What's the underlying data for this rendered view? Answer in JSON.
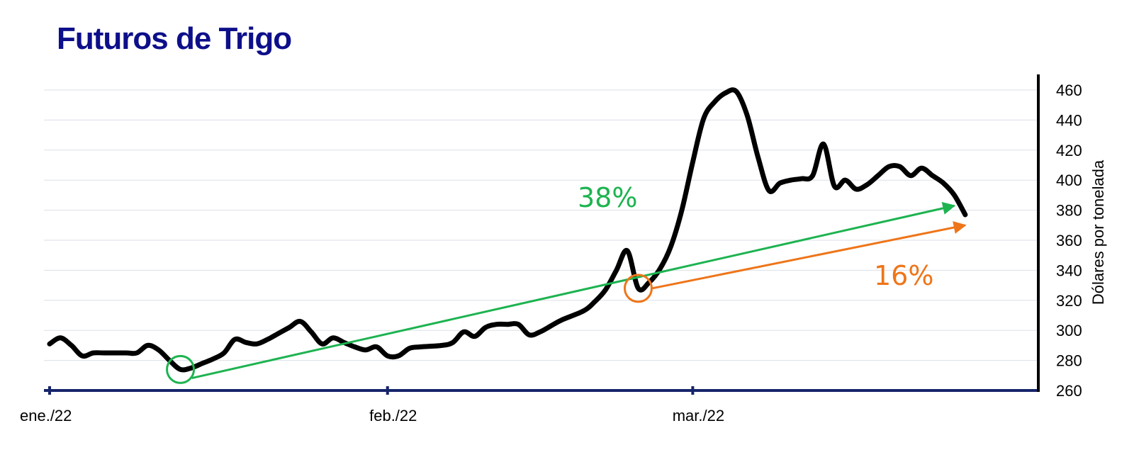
{
  "chart_data": {
    "type": "line",
    "title": "Futuros de  Trigo",
    "ylabel": "Dólares por tonelada",
    "ylim": [
      260,
      460
    ],
    "y_ticks": [
      260,
      280,
      300,
      320,
      340,
      360,
      380,
      400,
      420,
      440,
      460
    ],
    "y_axis_position": "right",
    "x_range": [
      "2022-01-03",
      "2022-03-31"
    ],
    "x_ticks": [
      {
        "date": "2022-01-03",
        "label": "ene./22"
      },
      {
        "date": "2022-02-03",
        "label": "feb./22"
      },
      {
        "date": "2022-03-03",
        "label": "mar./22"
      }
    ],
    "grid": "horizontal",
    "series": [
      {
        "color": "#000000",
        "points": [
          [
            "2022-01-03",
            291
          ],
          [
            "2022-01-04",
            295
          ],
          [
            "2022-01-05",
            290
          ],
          [
            "2022-01-06",
            283
          ],
          [
            "2022-01-07",
            285
          ],
          [
            "2022-01-08",
            285
          ],
          [
            "2022-01-10",
            285
          ],
          [
            "2022-01-11",
            285
          ],
          [
            "2022-01-12",
            290
          ],
          [
            "2022-01-13",
            287
          ],
          [
            "2022-01-14",
            280
          ],
          [
            "2022-01-15",
            274
          ],
          [
            "2022-01-16",
            275
          ],
          [
            "2022-01-17",
            278
          ],
          [
            "2022-01-18",
            281
          ],
          [
            "2022-01-19",
            285
          ],
          [
            "2022-01-20",
            294
          ],
          [
            "2022-01-21",
            292
          ],
          [
            "2022-01-22",
            291
          ],
          [
            "2022-01-23",
            294
          ],
          [
            "2022-01-24",
            298
          ],
          [
            "2022-01-25",
            302
          ],
          [
            "2022-01-26",
            306
          ],
          [
            "2022-01-27",
            299
          ],
          [
            "2022-01-28",
            291
          ],
          [
            "2022-01-29",
            295
          ],
          [
            "2022-01-30",
            292
          ],
          [
            "2022-01-31",
            289
          ],
          [
            "2022-02-01",
            287
          ],
          [
            "2022-02-02",
            289
          ],
          [
            "2022-02-03",
            283
          ],
          [
            "2022-02-04",
            283
          ],
          [
            "2022-02-05",
            288
          ],
          [
            "2022-02-06",
            289
          ],
          [
            "2022-02-08",
            290
          ],
          [
            "2022-02-09",
            292
          ],
          [
            "2022-02-10",
            299
          ],
          [
            "2022-02-11",
            296
          ],
          [
            "2022-02-12",
            302
          ],
          [
            "2022-02-13",
            304
          ],
          [
            "2022-02-14",
            304
          ],
          [
            "2022-02-15",
            304
          ],
          [
            "2022-02-16",
            297
          ],
          [
            "2022-02-17",
            299
          ],
          [
            "2022-02-18",
            303
          ],
          [
            "2022-02-19",
            307
          ],
          [
            "2022-02-21",
            313
          ],
          [
            "2022-02-22",
            319
          ],
          [
            "2022-02-23",
            327
          ],
          [
            "2022-02-24",
            340
          ],
          [
            "2022-02-25",
            353
          ],
          [
            "2022-02-26",
            328
          ],
          [
            "2022-02-27",
            332
          ],
          [
            "2022-02-28",
            341
          ],
          [
            "2022-03-01",
            356
          ],
          [
            "2022-03-02",
            380
          ],
          [
            "2022-03-03",
            412
          ],
          [
            "2022-03-04",
            441
          ],
          [
            "2022-03-05",
            452
          ],
          [
            "2022-03-06",
            458
          ],
          [
            "2022-03-07",
            459
          ],
          [
            "2022-03-08",
            443
          ],
          [
            "2022-03-09",
            415
          ],
          [
            "2022-03-10",
            393
          ],
          [
            "2022-03-11",
            398
          ],
          [
            "2022-03-12",
            400
          ],
          [
            "2022-03-13",
            401
          ],
          [
            "2022-03-14",
            403
          ],
          [
            "2022-03-15",
            424
          ],
          [
            "2022-03-16",
            396
          ],
          [
            "2022-03-17",
            400
          ],
          [
            "2022-03-18",
            394
          ],
          [
            "2022-03-19",
            397
          ],
          [
            "2022-03-20",
            403
          ],
          [
            "2022-03-21",
            409
          ],
          [
            "2022-03-22",
            409
          ],
          [
            "2022-03-23",
            403
          ],
          [
            "2022-03-24",
            408
          ],
          [
            "2022-03-25",
            403
          ],
          [
            "2022-03-26",
            398
          ],
          [
            "2022-03-27",
            390
          ],
          [
            "2022-03-28",
            377
          ]
        ]
      }
    ],
    "annotations": [
      {
        "type": "arrow",
        "label": "38%",
        "color": "#1db350",
        "from": [
          "2022-01-15",
          272
        ],
        "to": [
          "2022-03-27",
          383
        ],
        "circle_at": [
          "2022-01-15",
          274
        ]
      },
      {
        "type": "arrow",
        "label": "16%",
        "color": "#ee7519",
        "from": [
          "2022-02-26",
          328
        ],
        "to": [
          "2022-03-28",
          370
        ],
        "circle_at": [
          "2022-02-26",
          328
        ]
      }
    ]
  }
}
